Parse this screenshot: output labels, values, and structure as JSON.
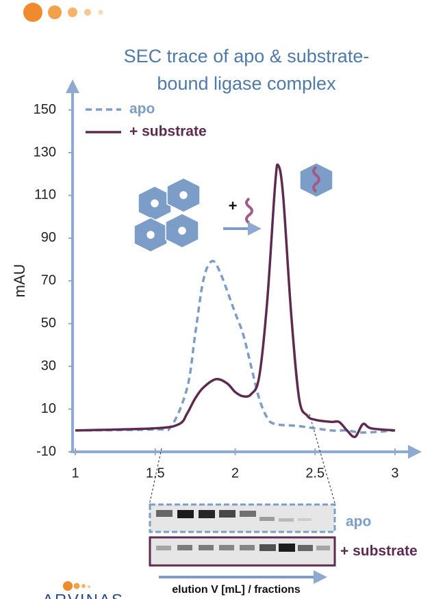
{
  "logo": "ARVINAS",
  "chart_data": {
    "type": "line",
    "title": "SEC trace of apo & substrate-bound ligase complex",
    "ylabel": "mAU",
    "x_label": "elution V [mL] / fractions",
    "annotation": "+",
    "xlim": [
      0.97,
      3.15
    ],
    "xticks": [
      1,
      1.5,
      2,
      2.5,
      3
    ],
    "ylim": [
      -10,
      163
    ],
    "yticks": [
      -10,
      10,
      30,
      50,
      70,
      90,
      110,
      130,
      150
    ],
    "legend": "upper left",
    "series": [
      {
        "name": "apo",
        "color": "#7b9dc8",
        "dash": true,
        "x": [
          1,
          1.5,
          1.6,
          1.7,
          1.75,
          1.8,
          1.85,
          1.9,
          2.0,
          2.05,
          2.1,
          2.15,
          2.2,
          2.25,
          2.4,
          2.6,
          2.7,
          2.8,
          3
        ],
        "values": [
          0,
          0.5,
          2,
          20,
          45,
          70,
          79,
          75,
          55,
          45,
          30,
          15,
          6,
          3,
          2,
          0,
          0,
          -1,
          0
        ]
      },
      {
        "name": "+ substrate",
        "color": "#5e2a4f",
        "dash": false,
        "x": [
          1,
          1.5,
          1.65,
          1.7,
          1.75,
          1.8,
          1.88,
          1.95,
          2.0,
          2.05,
          2.1,
          2.15,
          2.2,
          2.25,
          2.27,
          2.3,
          2.35,
          2.4,
          2.45,
          2.5,
          2.6,
          2.65,
          2.7,
          2.75,
          2.8,
          2.85,
          3
        ],
        "values": [
          0,
          1,
          3,
          8,
          15,
          20,
          24,
          22,
          18,
          16,
          17,
          25,
          60,
          115,
          124,
          110,
          55,
          15,
          7,
          5,
          4,
          4,
          0,
          -3,
          3,
          1,
          0
        ]
      }
    ]
  }
}
